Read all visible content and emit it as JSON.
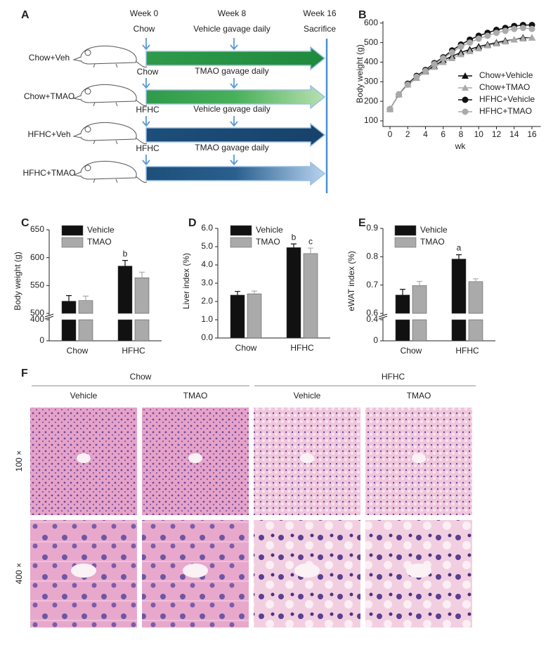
{
  "panel_labels": [
    "A",
    "B",
    "C",
    "D",
    "E",
    "F"
  ],
  "diagram": {
    "timepoints": [
      "Week 0",
      "Week 8",
      "Week 16"
    ],
    "end_label": "Sacrifice",
    "rows": [
      {
        "name": "Chow+Veh",
        "diet": "Chow",
        "treatment": "Vehicle gavage daily"
      },
      {
        "name": "Chow+TMAO",
        "diet": "Chow",
        "treatment": "TMAO gavage daily"
      },
      {
        "name": "HFHC+Veh",
        "diet": "HFHC",
        "treatment": "Vehicle gavage daily"
      },
      {
        "name": "HFHC+TMAO",
        "diet": "HFHC",
        "treatment": "TMAO gavage daily"
      }
    ]
  },
  "chart_data": [
    {
      "type": "line",
      "x_label": "wk",
      "y_label": "Body weight (g)",
      "x": [
        0,
        1,
        2,
        3,
        4,
        5,
        6,
        7,
        8,
        9,
        10,
        11,
        12,
        13,
        14,
        15,
        16
      ],
      "xlim": [
        0,
        17
      ],
      "xticks": [
        0,
        2,
        4,
        6,
        8,
        10,
        12,
        14,
        16
      ],
      "ylim": [
        100,
        610
      ],
      "yticks": [
        100,
        200,
        300,
        400,
        500,
        600
      ],
      "legend": "right",
      "series": [
        {
          "name": "Chow+Vehicle",
          "color": "#111111",
          "marker": "triangle",
          "values": [
            160,
            235,
            285,
            320,
            355,
            380,
            410,
            430,
            450,
            465,
            480,
            490,
            500,
            510,
            515,
            525,
            525
          ]
        },
        {
          "name": "Chow+TMAO",
          "color": "#aaaaaa",
          "marker": "triangle",
          "values": [
            160,
            235,
            285,
            320,
            350,
            375,
            400,
            420,
            440,
            455,
            470,
            485,
            495,
            505,
            515,
            520,
            525
          ]
        },
        {
          "name": "HFHC+Vehicle",
          "color": "#111111",
          "marker": "circle",
          "values": [
            160,
            235,
            290,
            330,
            360,
            395,
            425,
            460,
            490,
            515,
            535,
            550,
            565,
            575,
            585,
            590,
            590
          ]
        },
        {
          "name": "HFHC+TMAO",
          "color": "#aaaaaa",
          "marker": "circle",
          "values": [
            160,
            235,
            285,
            325,
            355,
            390,
            420,
            450,
            480,
            500,
            520,
            535,
            550,
            560,
            570,
            575,
            570
          ]
        }
      ]
    },
    {
      "type": "bar",
      "y_label": "Body weight (g)",
      "categories": [
        "Chow",
        "HFHC"
      ],
      "ylim": [
        0,
        650
      ],
      "axis_break": [
        400,
        500
      ],
      "yticks": [
        0,
        400,
        500,
        550,
        600,
        650
      ],
      "series": [
        {
          "name": "Vehicle",
          "color": "#111111",
          "values": [
            522,
            585
          ],
          "errors": [
            10,
            10
          ],
          "annotations": [
            null,
            "b"
          ]
        },
        {
          "name": "TMAO",
          "color": "#aaaaaa",
          "values": [
            523,
            564
          ],
          "errors": [
            8,
            10
          ],
          "annotations": [
            null,
            null
          ]
        }
      ]
    },
    {
      "type": "bar",
      "y_label": "Liver index (%)",
      "categories": [
        "Chow",
        "HFHC"
      ],
      "ylim": [
        0,
        6
      ],
      "yticks": [
        {
          "value": 0,
          "label": "0.0"
        },
        {
          "value": 1,
          "label": "1.0"
        },
        {
          "value": 2,
          "label": "2.0"
        },
        {
          "value": 3,
          "label": "3.0"
        },
        {
          "value": 4,
          "label": "4.0"
        },
        {
          "value": 5,
          "label": "5.0"
        },
        {
          "value": 6,
          "label": "6.0"
        }
      ],
      "series": [
        {
          "name": "Vehicle",
          "color": "#111111",
          "values": [
            2.35,
            4.95
          ],
          "errors": [
            0.2,
            0.2
          ],
          "annotations": [
            null,
            "b"
          ]
        },
        {
          "name": "TMAO",
          "color": "#aaaaaa",
          "values": [
            2.42,
            4.62
          ],
          "errors": [
            0.15,
            0.3
          ],
          "annotations": [
            null,
            "c"
          ]
        }
      ]
    },
    {
      "type": "bar",
      "y_label": "eWAT index (%)",
      "categories": [
        "Chow",
        "HFHC"
      ],
      "ylim": [
        0,
        0.9
      ],
      "axis_break": [
        0.4,
        0.6
      ],
      "yticks": [
        0,
        0.4,
        0.6,
        0.7,
        0.8,
        0.9
      ],
      "series": [
        {
          "name": "Vehicle",
          "color": "#111111",
          "values": [
            0.665,
            0.792
          ],
          "errors": [
            0.02,
            0.015
          ],
          "annotations": [
            null,
            "a"
          ]
        },
        {
          "name": "TMAO",
          "color": "#aaaaaa",
          "values": [
            0.698,
            0.712
          ],
          "errors": [
            0.015,
            0.01
          ],
          "annotations": [
            null,
            null
          ]
        }
      ]
    }
  ],
  "histology": {
    "groups": [
      {
        "name": "Chow",
        "treatments": [
          "Vehicle",
          "TMAO"
        ]
      },
      {
        "name": "HFHC",
        "treatments": [
          "Vehicle",
          "TMAO"
        ]
      }
    ],
    "magnifications": [
      "100 ×",
      "400 ×"
    ]
  }
}
